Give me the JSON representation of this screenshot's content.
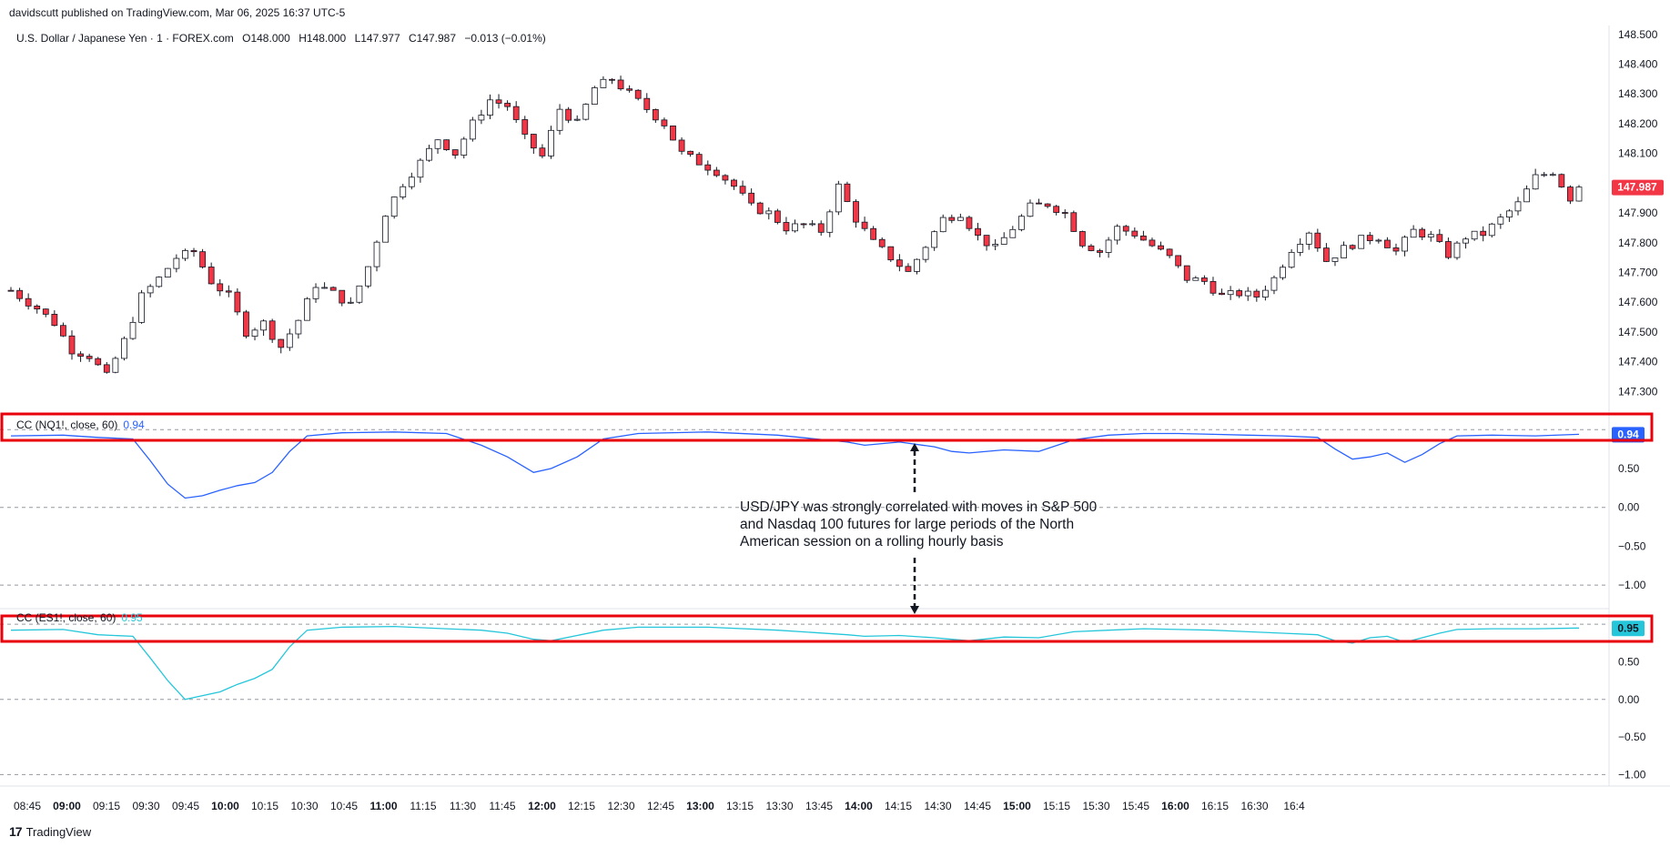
{
  "publisher": "davidscutt published on TradingView.com, Mar 06, 2025 16:37 UTC-5",
  "main_legend": {
    "symbol": "U.S. Dollar / Japanese Yen · 1 · FOREX.com",
    "open": "O148.000",
    "high": "H148.000",
    "low": "L147.977",
    "close": "C147.987",
    "change": "−0.013 (−0.01%)"
  },
  "price_label": "147.987",
  "indicator1": {
    "label": "CC (NQ1!, close, 60)",
    "value": "0.94",
    "color": "#2962ff"
  },
  "indicator2": {
    "label": "CC (ES1!, close, 60)",
    "value": "0.95",
    "color": "#26c6da"
  },
  "annotation": "USD/JPY was strongly correlated with moves in S&P 500 and Nasdaq 100 futures for large periods of the North American session on a rolling hourly basis",
  "logo_text": "TradingView",
  "colors": {
    "up": "#089981",
    "down": "#f23645",
    "candle": "#131722",
    "highlight": "#e8000b",
    "price_tag": "#f23645"
  },
  "chart_data": [
    {
      "type": "candlestick",
      "title": "U.S. Dollar / Japanese Yen · 1 · FOREX.com",
      "x_ticks": [
        {
          "label": "08:45",
          "bold": false
        },
        {
          "label": "09:00",
          "bold": true
        },
        {
          "label": "09:15",
          "bold": false
        },
        {
          "label": "09:30",
          "bold": false
        },
        {
          "label": "09:45",
          "bold": false
        },
        {
          "label": "10:00",
          "bold": true
        },
        {
          "label": "10:15",
          "bold": false
        },
        {
          "label": "10:30",
          "bold": false
        },
        {
          "label": "10:45",
          "bold": false
        },
        {
          "label": "11:00",
          "bold": true
        },
        {
          "label": "11:15",
          "bold": false
        },
        {
          "label": "11:30",
          "bold": false
        },
        {
          "label": "11:45",
          "bold": false
        },
        {
          "label": "12:00",
          "bold": true
        },
        {
          "label": "12:15",
          "bold": false
        },
        {
          "label": "12:30",
          "bold": false
        },
        {
          "label": "12:45",
          "bold": false
        },
        {
          "label": "13:00",
          "bold": true
        },
        {
          "label": "13:15",
          "bold": false
        },
        {
          "label": "13:30",
          "bold": false
        },
        {
          "label": "13:45",
          "bold": false
        },
        {
          "label": "14:00",
          "bold": true
        },
        {
          "label": "14:15",
          "bold": false
        },
        {
          "label": "14:30",
          "bold": false
        },
        {
          "label": "14:45",
          "bold": false
        },
        {
          "label": "15:00",
          "bold": true
        },
        {
          "label": "15:15",
          "bold": false
        },
        {
          "label": "15:30",
          "bold": false
        },
        {
          "label": "15:45",
          "bold": false
        },
        {
          "label": "16:00",
          "bold": true
        },
        {
          "label": "16:15",
          "bold": false
        },
        {
          "label": "16:30",
          "bold": false
        },
        {
          "label": "16:4",
          "bold": false
        }
      ],
      "y_ticks": [
        "148.500",
        "148.400",
        "148.300",
        "148.200",
        "148.100",
        "147.900",
        "147.800",
        "147.700",
        "147.600",
        "147.500",
        "147.400",
        "147.300"
      ],
      "ylim": [
        147.24,
        148.53
      ],
      "close_path": [
        [
          0,
          147.64
        ],
        [
          3,
          147.58
        ],
        [
          5,
          147.53
        ],
        [
          7,
          147.44
        ],
        [
          9,
          147.42
        ],
        [
          11,
          147.35
        ],
        [
          13,
          147.47
        ],
        [
          15,
          147.62
        ],
        [
          17,
          147.68
        ],
        [
          19,
          147.75
        ],
        [
          21,
          147.77
        ],
        [
          23,
          147.67
        ],
        [
          25,
          147.62
        ],
        [
          27,
          147.5
        ],
        [
          29,
          147.53
        ],
        [
          31,
          147.45
        ],
        [
          33,
          147.54
        ],
        [
          35,
          147.66
        ],
        [
          37,
          147.63
        ],
        [
          39,
          147.59
        ],
        [
          41,
          147.72
        ],
        [
          43,
          147.9
        ],
        [
          45,
          148.0
        ],
        [
          47,
          148.07
        ],
        [
          49,
          148.15
        ],
        [
          51,
          148.1
        ],
        [
          53,
          148.2
        ],
        [
          55,
          148.28
        ],
        [
          57,
          148.26
        ],
        [
          59,
          148.15
        ],
        [
          61,
          148.09
        ],
        [
          63,
          148.25
        ],
        [
          65,
          148.2
        ],
        [
          67,
          148.32
        ],
        [
          69,
          148.35
        ],
        [
          71,
          148.3
        ],
        [
          73,
          148.25
        ],
        [
          75,
          148.2
        ],
        [
          77,
          148.1
        ],
        [
          79,
          148.07
        ],
        [
          81,
          148.04
        ],
        [
          83,
          147.99
        ],
        [
          85,
          147.92
        ],
        [
          87,
          147.9
        ],
        [
          89,
          147.85
        ],
        [
          91,
          147.86
        ],
        [
          93,
          147.84
        ],
        [
          95,
          147.99
        ],
        [
          97,
          147.88
        ],
        [
          99,
          147.8
        ],
        [
          101,
          147.75
        ],
        [
          103,
          147.7
        ],
        [
          105,
          147.79
        ],
        [
          107,
          147.88
        ],
        [
          109,
          147.9
        ],
        [
          111,
          147.82
        ],
        [
          113,
          147.78
        ],
        [
          115,
          147.85
        ],
        [
          117,
          147.92
        ],
        [
          119,
          147.93
        ],
        [
          121,
          147.9
        ],
        [
          123,
          147.8
        ],
        [
          125,
          147.77
        ],
        [
          127,
          147.85
        ],
        [
          129,
          147.83
        ],
        [
          131,
          147.79
        ],
        [
          133,
          147.75
        ],
        [
          135,
          147.68
        ],
        [
          137,
          147.67
        ],
        [
          139,
          147.62
        ],
        [
          141,
          147.63
        ],
        [
          143,
          147.62
        ],
        [
          145,
          147.68
        ],
        [
          147,
          147.78
        ],
        [
          149,
          147.84
        ],
        [
          151,
          147.74
        ],
        [
          153,
          147.78
        ],
        [
          155,
          147.81
        ],
        [
          157,
          147.82
        ],
        [
          159,
          147.77
        ],
        [
          161,
          147.84
        ],
        [
          163,
          147.82
        ],
        [
          165,
          147.76
        ],
        [
          167,
          147.82
        ],
        [
          169,
          147.83
        ],
        [
          171,
          147.88
        ],
        [
          173,
          147.93
        ],
        [
          175,
          148.02
        ],
        [
          177,
          148.04
        ],
        [
          179,
          147.95
        ],
        [
          180,
          147.99
        ]
      ],
      "last_price": 147.987
    },
    {
      "type": "line",
      "title": "CC (NQ1!, close, 60)",
      "y_ticks": [
        "0.50",
        "0.00",
        "−0.50",
        "−1.00"
      ],
      "ylim": [
        -1.08,
        1.05
      ],
      "dashed_levels": [
        1.0,
        0.0,
        -1.0
      ],
      "series": [
        {
          "name": "CC (NQ1!, close, 60)",
          "color": "#2962ff",
          "points": [
            [
              0,
              0.92
            ],
            [
              6,
              0.93
            ],
            [
              10,
              0.9
            ],
            [
              14,
              0.88
            ],
            [
              16,
              0.6
            ],
            [
              18,
              0.3
            ],
            [
              20,
              0.12
            ],
            [
              22,
              0.15
            ],
            [
              24,
              0.22
            ],
            [
              26,
              0.28
            ],
            [
              28,
              0.32
            ],
            [
              30,
              0.45
            ],
            [
              32,
              0.72
            ],
            [
              34,
              0.92
            ],
            [
              38,
              0.96
            ],
            [
              44,
              0.97
            ],
            [
              50,
              0.95
            ],
            [
              54,
              0.8
            ],
            [
              57,
              0.65
            ],
            [
              60,
              0.45
            ],
            [
              62,
              0.5
            ],
            [
              65,
              0.65
            ],
            [
              68,
              0.88
            ],
            [
              72,
              0.95
            ],
            [
              80,
              0.97
            ],
            [
              88,
              0.93
            ],
            [
              96,
              0.84
            ],
            [
              98,
              0.8
            ],
            [
              102,
              0.84
            ],
            [
              106,
              0.78
            ],
            [
              108,
              0.72
            ],
            [
              110,
              0.7
            ],
            [
              114,
              0.74
            ],
            [
              118,
              0.72
            ],
            [
              122,
              0.87
            ],
            [
              126,
              0.93
            ],
            [
              130,
              0.95
            ],
            [
              134,
              0.95
            ],
            [
              138,
              0.94
            ],
            [
              142,
              0.93
            ],
            [
              146,
              0.92
            ],
            [
              150,
              0.9
            ],
            [
              152,
              0.75
            ],
            [
              154,
              0.62
            ],
            [
              156,
              0.65
            ],
            [
              158,
              0.7
            ],
            [
              160,
              0.58
            ],
            [
              162,
              0.68
            ],
            [
              164,
              0.82
            ],
            [
              166,
              0.92
            ],
            [
              170,
              0.93
            ],
            [
              175,
              0.92
            ],
            [
              180,
              0.94
            ]
          ]
        }
      ],
      "last_value": 0.94
    },
    {
      "type": "line",
      "title": "CC (ES1!, close, 60)",
      "y_ticks": [
        "0.50",
        "0.00",
        "−0.50",
        "−1.00"
      ],
      "ylim": [
        -1.08,
        1.05
      ],
      "dashed_levels": [
        1.0,
        0.0,
        -1.0
      ],
      "series": [
        {
          "name": "CC (ES1!, close, 60)",
          "color": "#26c6da",
          "points": [
            [
              0,
              0.92
            ],
            [
              6,
              0.93
            ],
            [
              10,
              0.86
            ],
            [
              14,
              0.84
            ],
            [
              16,
              0.55
            ],
            [
              18,
              0.25
            ],
            [
              20,
              0.0
            ],
            [
              22,
              0.05
            ],
            [
              24,
              0.1
            ],
            [
              26,
              0.2
            ],
            [
              28,
              0.28
            ],
            [
              30,
              0.4
            ],
            [
              32,
              0.7
            ],
            [
              34,
              0.92
            ],
            [
              38,
              0.96
            ],
            [
              44,
              0.97
            ],
            [
              50,
              0.94
            ],
            [
              54,
              0.92
            ],
            [
              57,
              0.88
            ],
            [
              60,
              0.8
            ],
            [
              62,
              0.78
            ],
            [
              65,
              0.85
            ],
            [
              68,
              0.92
            ],
            [
              72,
              0.96
            ],
            [
              80,
              0.96
            ],
            [
              88,
              0.92
            ],
            [
              96,
              0.86
            ],
            [
              98,
              0.84
            ],
            [
              102,
              0.85
            ],
            [
              106,
              0.82
            ],
            [
              108,
              0.8
            ],
            [
              110,
              0.78
            ],
            [
              114,
              0.83
            ],
            [
              118,
              0.82
            ],
            [
              122,
              0.9
            ],
            [
              126,
              0.92
            ],
            [
              130,
              0.94
            ],
            [
              134,
              0.93
            ],
            [
              138,
              0.92
            ],
            [
              142,
              0.9
            ],
            [
              146,
              0.88
            ],
            [
              150,
              0.86
            ],
            [
              152,
              0.78
            ],
            [
              154,
              0.75
            ],
            [
              156,
              0.82
            ],
            [
              158,
              0.84
            ],
            [
              160,
              0.76
            ],
            [
              162,
              0.82
            ],
            [
              164,
              0.88
            ],
            [
              166,
              0.93
            ],
            [
              170,
              0.94
            ],
            [
              175,
              0.94
            ],
            [
              180,
              0.95
            ]
          ]
        }
      ],
      "last_value": 0.95
    }
  ]
}
